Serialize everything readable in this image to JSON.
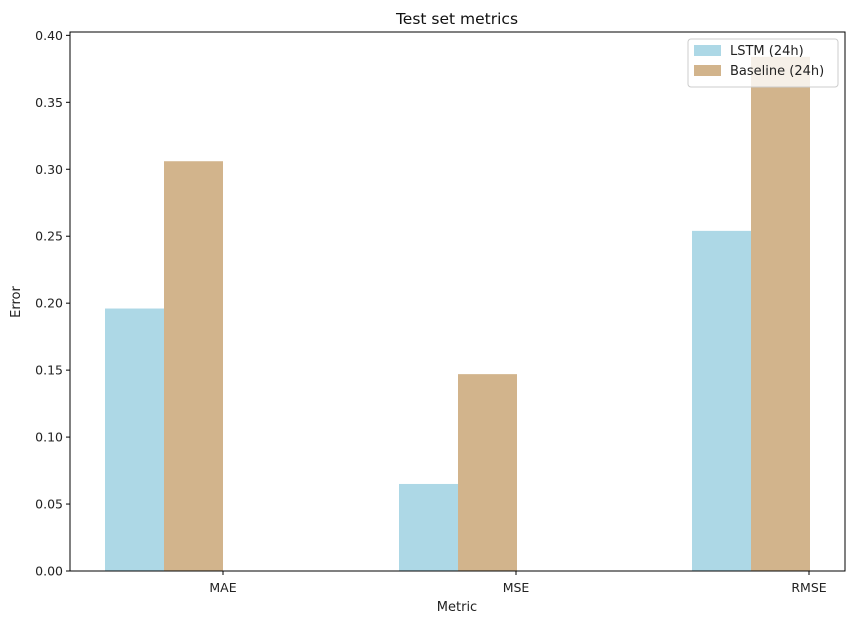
{
  "chart_data": {
    "type": "bar",
    "title": "Test set metrics",
    "xlabel": "Metric",
    "ylabel": "Error",
    "categories": [
      "MAE",
      "MSE",
      "RMSE"
    ],
    "series": [
      {
        "name": "LSTM (24h)",
        "color": "#add8e6",
        "values": [
          0.196,
          0.065,
          0.254
        ]
      },
      {
        "name": "Baseline (24h)",
        "color": "#d2b48c",
        "values": [
          0.306,
          0.147,
          0.384
        ]
      }
    ],
    "ylim": [
      0,
      0.4
    ],
    "yticks": [
      "0.00",
      "0.05",
      "0.10",
      "0.15",
      "0.20",
      "0.25",
      "0.30",
      "0.35",
      "0.40"
    ],
    "legend_position": "top-right",
    "grid": false
  }
}
